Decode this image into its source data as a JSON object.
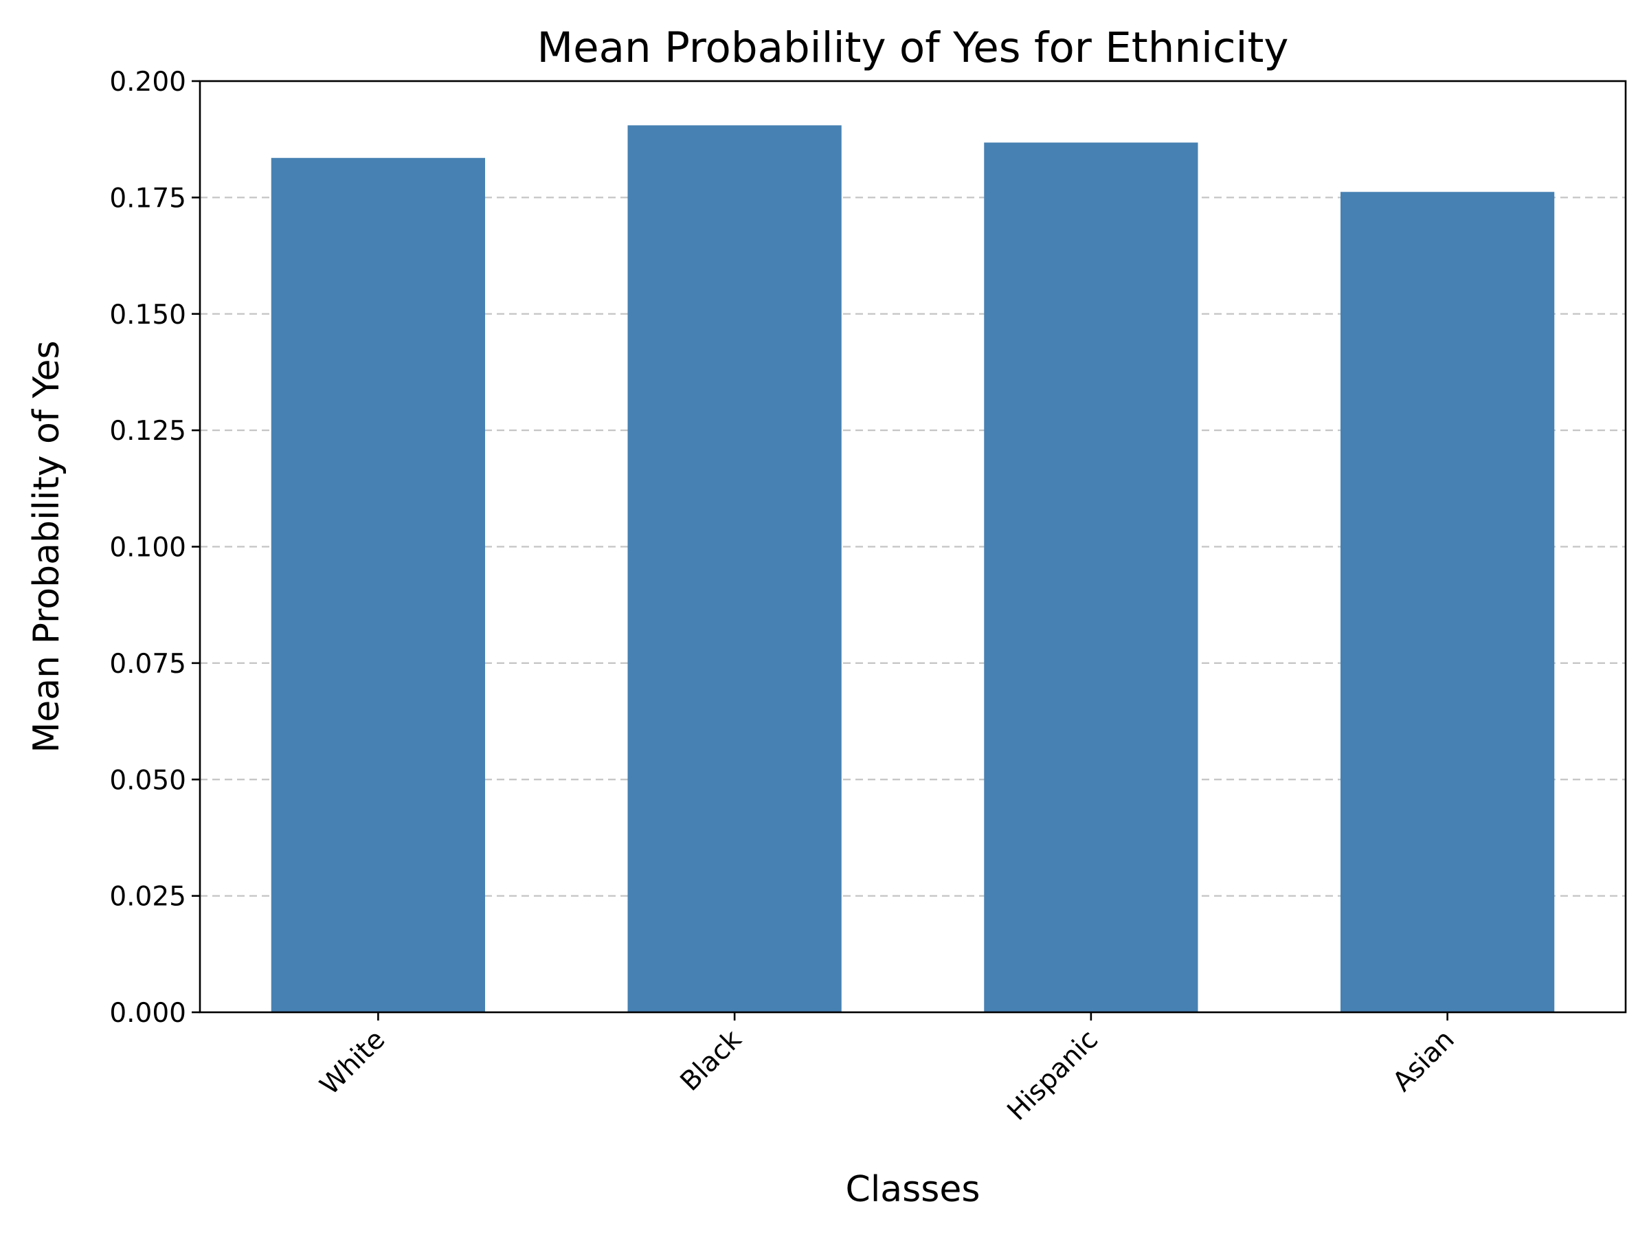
{
  "chart_data": {
    "type": "bar",
    "title": "Mean Probability of Yes for Ethnicity",
    "xlabel": "Classes",
    "ylabel": "Mean Probability of Yes",
    "categories": [
      "White",
      "Black",
      "Hispanic",
      "Asian"
    ],
    "values": [
      0.1835,
      0.1905,
      0.1868,
      0.1762
    ],
    "ylim": [
      0,
      0.2
    ],
    "yticks": [
      "0.000",
      "0.025",
      "0.050",
      "0.075",
      "0.100",
      "0.125",
      "0.150",
      "0.175",
      "0.200"
    ],
    "grid": "y-axis, dashed",
    "legend": "none",
    "bar_color": "#4781b3",
    "grid_color": "#c4c4c4",
    "xtick_rotation_deg": 45
  }
}
